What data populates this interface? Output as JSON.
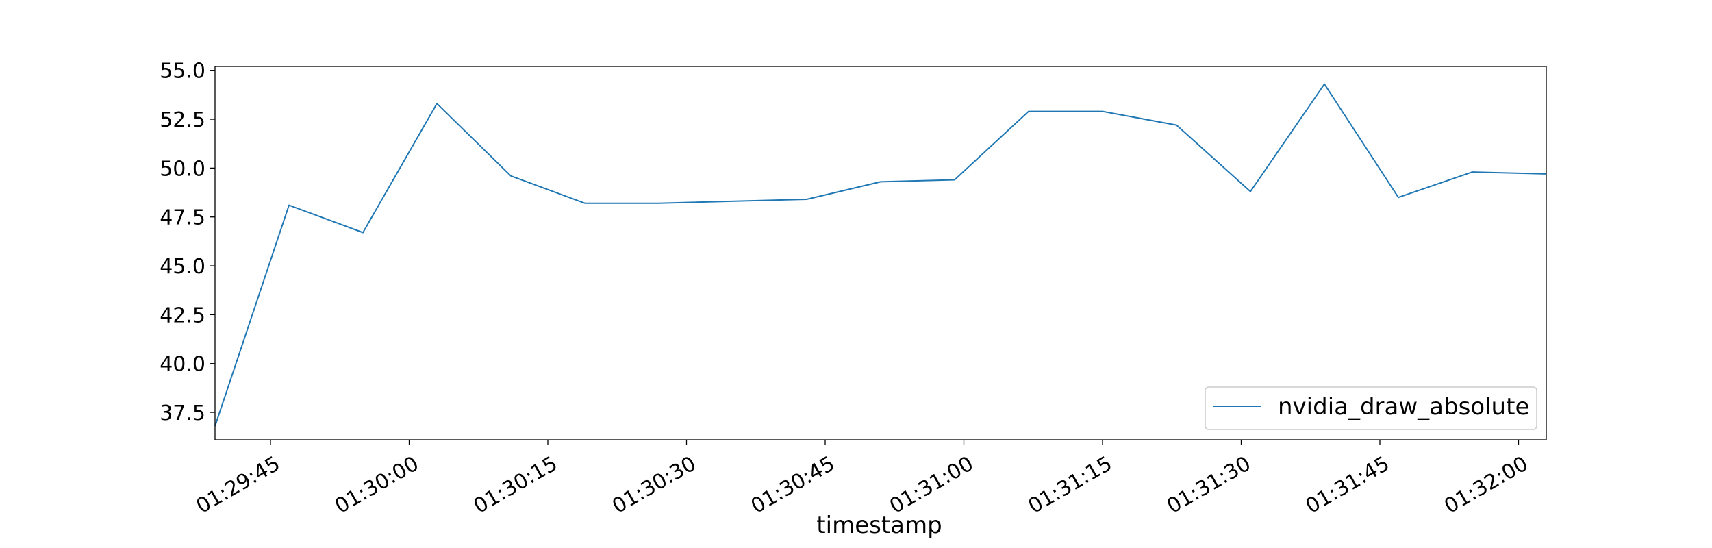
{
  "chart_data": {
    "type": "line",
    "title": "",
    "xlabel": "timestamp",
    "ylabel": "",
    "x_tick_labels": [
      "01:29:45",
      "01:30:00",
      "01:30:15",
      "01:30:30",
      "01:30:45",
      "01:31:00",
      "01:31:15",
      "01:31:30",
      "01:31:45",
      "01:32:00"
    ],
    "y_tick_labels": [
      "37.5",
      "40.0",
      "42.5",
      "45.0",
      "47.5",
      "50.0",
      "52.5",
      "55.0"
    ],
    "xlim": [
      "01:29:39",
      "01:32:03"
    ],
    "ylim": [
      36.1,
      55.2
    ],
    "grid": false,
    "legend": {
      "position": "lower-right"
    },
    "series": [
      {
        "name": "nvidia_draw_absolute",
        "color": "#1f77b4",
        "points": [
          {
            "x": "01:29:39",
            "y": 36.8
          },
          {
            "x": "01:29:47",
            "y": 48.1
          },
          {
            "x": "01:29:55",
            "y": 46.7
          },
          {
            "x": "01:30:03",
            "y": 53.3
          },
          {
            "x": "01:30:11",
            "y": 49.6
          },
          {
            "x": "01:30:19",
            "y": 48.2
          },
          {
            "x": "01:30:27",
            "y": 48.2
          },
          {
            "x": "01:30:43",
            "y": 48.4
          },
          {
            "x": "01:30:51",
            "y": 49.3
          },
          {
            "x": "01:30:59",
            "y": 49.4
          },
          {
            "x": "01:31:07",
            "y": 52.9
          },
          {
            "x": "01:31:15",
            "y": 52.9
          },
          {
            "x": "01:31:23",
            "y": 52.2
          },
          {
            "x": "01:31:31",
            "y": 48.8
          },
          {
            "x": "01:31:39",
            "y": 54.3
          },
          {
            "x": "01:31:47",
            "y": 48.5
          },
          {
            "x": "01:31:55",
            "y": 49.8
          },
          {
            "x": "01:32:03",
            "y": 49.7
          }
        ]
      }
    ]
  }
}
